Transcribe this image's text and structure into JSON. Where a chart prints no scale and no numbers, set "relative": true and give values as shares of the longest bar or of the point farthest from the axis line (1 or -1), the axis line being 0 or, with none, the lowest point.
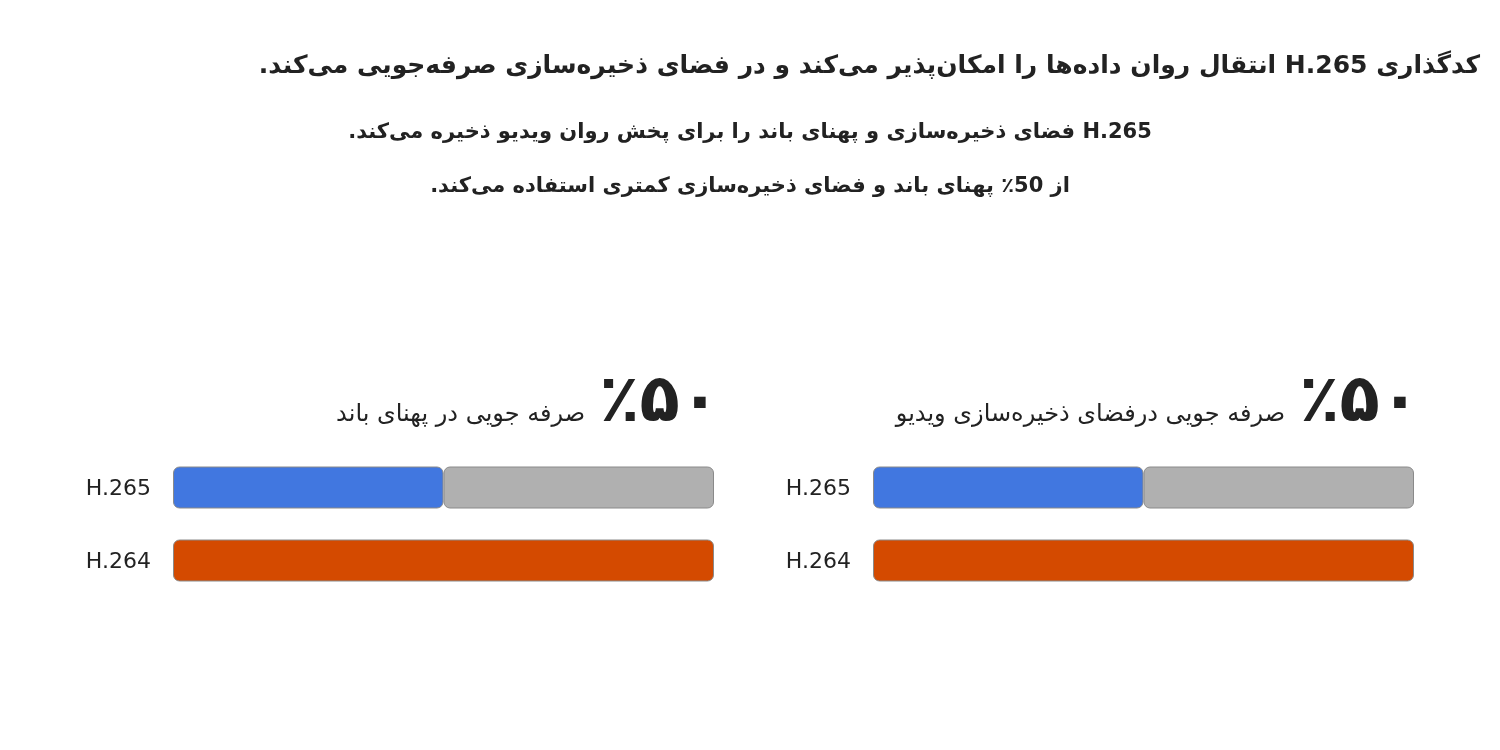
{
  "chart_data": [
    {
      "type": "other",
      "title": "کدگذاری H.265 انتقال روان داده‌ها را امکان‌پذیر می‌کند و در فضای ذخیره‌سازی صرفه‌جویی می‌کند.",
      "annotations": [
        "H.265 فضای ذخیره‌سازی و پهنای باند را برای پخش روان ویدیو ذخیره می‌کند.",
        "از 50٪ پهنای باند و فضای ذخیره‌سازی کمتری استفاده می‌کند."
      ]
    },
    {
      "type": "bar",
      "title": "٪۵۰",
      "subtitle": "صرفه جویی درفضای ذخیره‌سازی ویدیو",
      "orientation": "horizontal",
      "stacked": true,
      "relative": true,
      "categories": [
        "H.265",
        "H.264"
      ],
      "series": [
        {
          "colors": [
            "#4177e0",
            "#d44a00"
          ],
          "values": [
            0.5,
            1
          ]
        },
        {
          "color": "#b0b0b0",
          "values": [
            0.5,
            null
          ]
        }
      ]
    },
    {
      "type": "bar",
      "title": "٪۵۰",
      "subtitle": "صرفه جویی در پهنای باند",
      "orientation": "horizontal",
      "stacked": true,
      "relative": true,
      "categories": [
        "H.265",
        "H.264"
      ],
      "series": [
        {
          "colors": [
            "#4177e0",
            "#d44a00"
          ],
          "values": [
            0.5,
            1
          ]
        },
        {
          "color": "#b0b0b0",
          "values": [
            0.5,
            null
          ]
        }
      ]
    }
  ]
}
